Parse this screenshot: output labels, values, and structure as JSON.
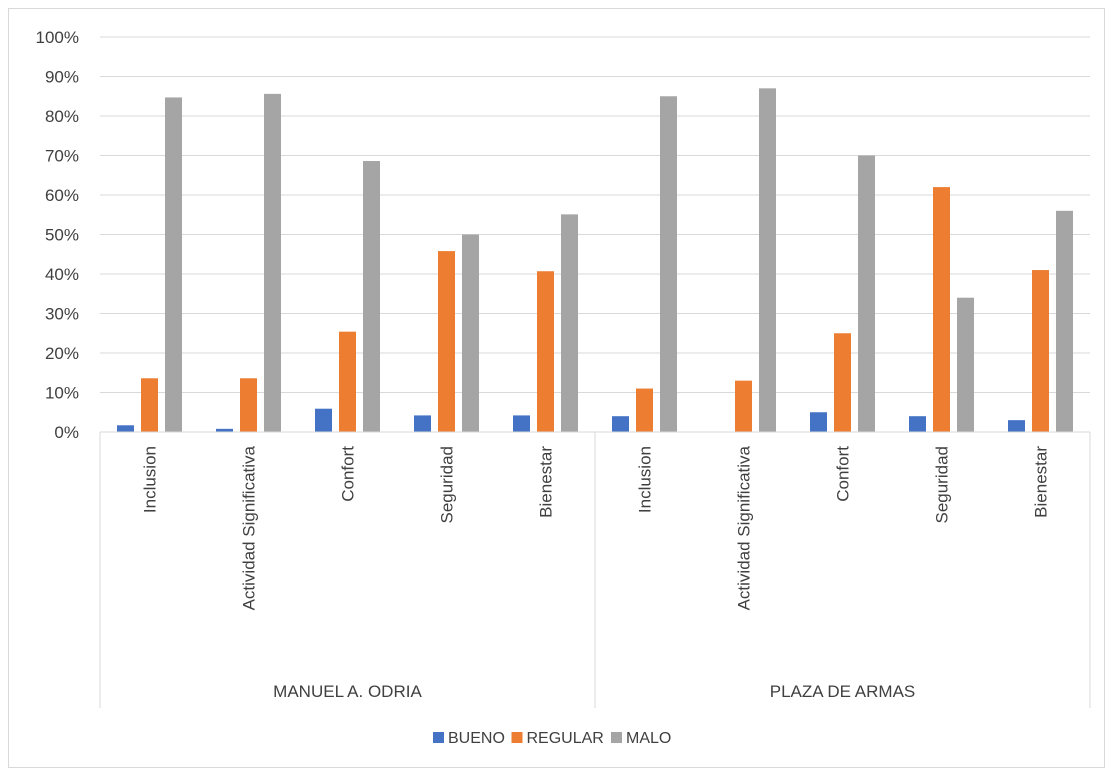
{
  "chart_data": {
    "type": "bar",
    "groups": [
      {
        "name": "MANUEL  A. ODRIA",
        "categories": [
          "Inclusion",
          "Actividad Significativa",
          "Confort",
          "Seguridad",
          "Bienestar"
        ]
      },
      {
        "name": "PLAZA DE ARMAS",
        "categories": [
          "Inclusion",
          "Actividad Significativa",
          "Confort",
          "Seguridad",
          "Bienestar"
        ]
      }
    ],
    "categories": [
      "Inclusion",
      "Actividad Significativa",
      "Confort",
      "Seguridad",
      "Bienestar",
      "Inclusion",
      "Actividad Significativa",
      "Confort",
      "Seguridad",
      "Bienestar"
    ],
    "series": [
      {
        "name": "BUENO",
        "color": "#4472c4",
        "values": [
          1.7,
          0.8,
          5.9,
          4.2,
          4.2,
          4,
          0,
          5,
          4,
          3
        ]
      },
      {
        "name": "REGULAR",
        "color": "#ed7d31",
        "values": [
          13.6,
          13.6,
          25.4,
          45.8,
          40.7,
          11,
          13,
          25,
          62,
          41
        ]
      },
      {
        "name": "MALO",
        "color": "#a5a5a5",
        "values": [
          84.7,
          85.6,
          68.6,
          50.0,
          55.1,
          85,
          87,
          70,
          34,
          56
        ]
      }
    ],
    "yticks": [
      "0%",
      "10%",
      "20%",
      "30%",
      "40%",
      "50%",
      "60%",
      "70%",
      "80%",
      "90%",
      "100%"
    ],
    "ylim": [
      0,
      100
    ],
    "grid": true,
    "legend_position": "bottom"
  }
}
